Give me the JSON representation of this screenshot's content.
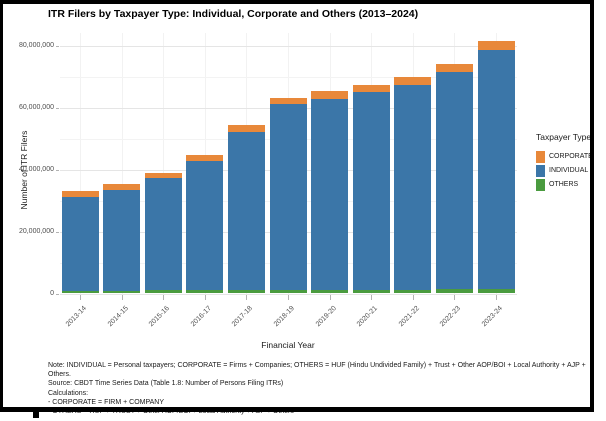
{
  "chart_data": {
    "type": "bar",
    "stacked": true,
    "title": "ITR Filers by Taxpayer Type: Individual, Corporate and Others (2013–2024)",
    "xlabel": "Financial Year",
    "ylabel": "Number of ITR Filers",
    "ylim": [
      0,
      80000000
    ],
    "grid": true,
    "ytick_values": [
      0,
      20000000,
      40000000,
      60000000,
      80000000
    ],
    "ytick_labels": [
      "0",
      "20,000,000",
      "40,000,000",
      "60,000,000",
      "80,000,000"
    ],
    "yminor_values": [
      10000000,
      30000000,
      50000000,
      70000000
    ],
    "categories": [
      "2013-14",
      "2014-15",
      "2015-16",
      "2016-17",
      "2017-18",
      "2018-19",
      "2019-20",
      "2020-21",
      "2021-22",
      "2022-23",
      "2023-24"
    ],
    "series": [
      {
        "name": "OTHERS",
        "color": "#4a9b3f",
        "values": [
          950000,
          950000,
          1000000,
          1000000,
          1100000,
          1100000,
          1200000,
          1200000,
          1200000,
          1300000,
          1500000
        ]
      },
      {
        "name": "INDIVIDUAL",
        "color": "#3b76a8",
        "values": [
          30200000,
          32400000,
          36300000,
          41900000,
          51000000,
          60000000,
          61500000,
          63800000,
          66000000,
          70200000,
          77000000
        ]
      },
      {
        "name": "CORPORATE",
        "color": "#e8883a",
        "values": [
          1850000,
          1850000,
          1700000,
          1800000,
          2400000,
          2100000,
          2700000,
          2400000,
          2500000,
          2500000,
          2900000
        ]
      }
    ],
    "totals": [
      33000000,
      35200000,
      39000000,
      44700000,
      54500000,
      63200000,
      65400000,
      67400000,
      69700000,
      74000000,
      81400000
    ],
    "legend": {
      "title": "Taxpayer Type",
      "position": "right",
      "items": [
        {
          "label": "CORPORATE",
          "color": "#e8883a"
        },
        {
          "label": "INDIVIDUAL",
          "color": "#3b76a8"
        },
        {
          "label": "OTHERS",
          "color": "#4a9b3f"
        }
      ]
    },
    "colors": {
      "grid_major": "#e5e5e5",
      "grid_minor": "#f3f3f3",
      "axis_tick": "#b3b3b3",
      "panel_bg": "#ffffff"
    }
  },
  "notes": {
    "lines": [
      "Note: INDIVIDUAL = Personal taxpayers; CORPORATE = Firms + Companies; OTHERS = HUF (Hindu Undivided Family) + Trust + Other AOP/BOI + Local Authority + AJP + Others.",
      "Source: CBDT Time Series Data (Table 1.8: Number of Persons Filing ITRs)",
      "Calculations:",
      "- CORPORATE = FIRM + COMPANY",
      "- OTHERS = HUF + TRUST + Other AOP/BOI + Local Authority + AJP + Others"
    ]
  }
}
